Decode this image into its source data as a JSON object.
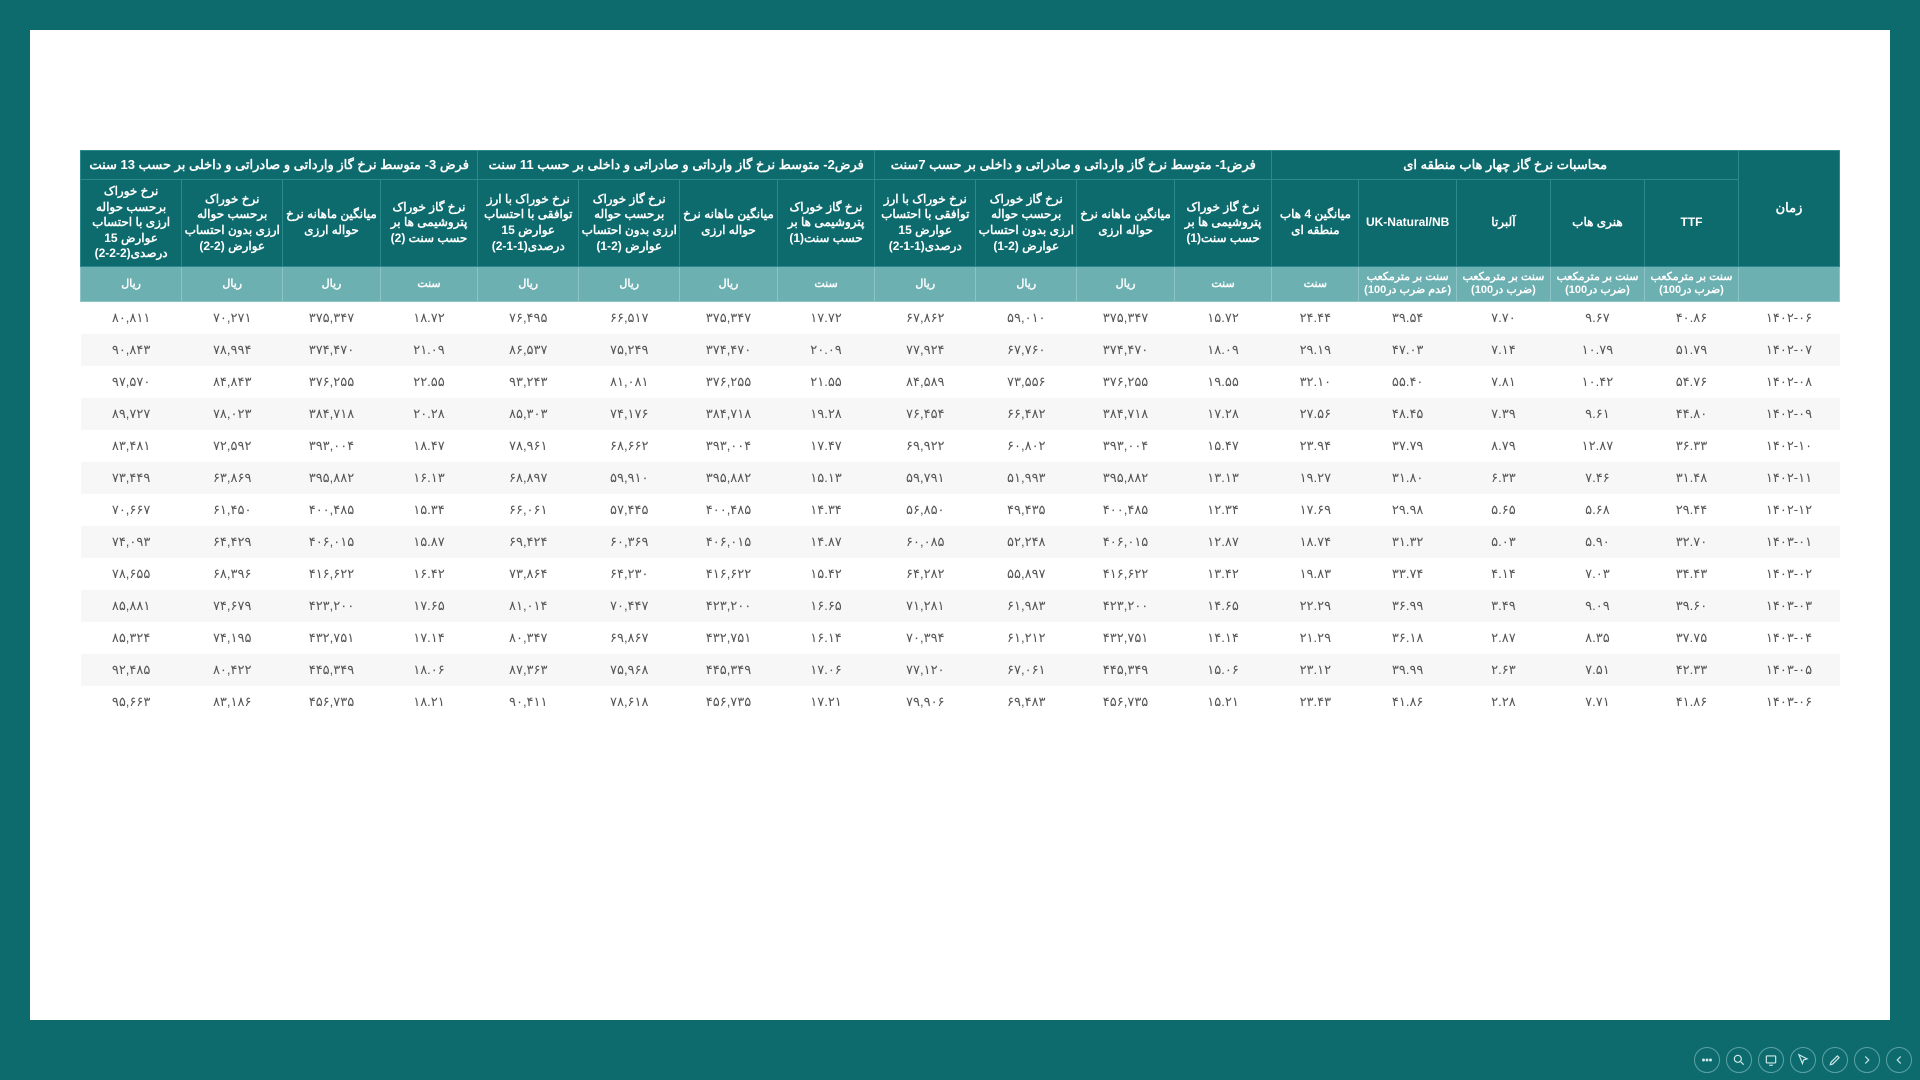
{
  "colors": {
    "page_bg": "#0d6b6e",
    "sheet_bg": "#ffffff",
    "header_bg": "#0d6b6e",
    "header_border": "#2a8a8d",
    "units_bg": "#6db0b2",
    "text": "#555555"
  },
  "groups": [
    {
      "label": "زمان",
      "span": 1
    },
    {
      "label": "محاسبات نرخ گاز چهار هاب منطقه ای",
      "span": 5
    },
    {
      "label": "فرض1- متوسط نرخ گاز وارداتی و صادراتی و داخلی بر حسب 7سنت",
      "span": 4
    },
    {
      "label": "فرض2- متوسط نرخ گاز وارداتی و صادراتی و داخلی بر حسب 11 سنت",
      "span": 4
    },
    {
      "label": "فرض 3- متوسط نرخ گاز وارداتی و صادراتی و داخلی بر حسب 13 سنت",
      "span": 4
    }
  ],
  "subheaders": [
    "زمان",
    "TTF",
    "هنری هاب",
    "آلبرتا",
    "UK-Natural/NB",
    "میانگین 4 هاب منطقه ای",
    "نرخ گاز خوراک پتروشیمی ها بر حسب سنت(1)",
    "میانگین ماهانه نرخ حواله ارزی",
    "نرخ گاز خوراک برحسب حواله ارزی بدون احتساب عوارض (2-1)",
    "نرخ خوراک با ارز توافقی با احتساب عوارض 15 درصدی(1-1-2)",
    "نرخ گاز خوراک پتروشیمی ها بر حسب سنت(1)",
    "میانگین ماهانه نرخ حواله ارزی",
    "نرخ گاز خوراک برحسب حواله ارزی بدون احتساب عوارض (2-1)",
    "نرخ خوراک با ارز توافقی با احتساب عوارض 15 درصدی(1-1-2)",
    "نرخ گاز خوراک پتروشیمی ها بر حسب سنت (2)",
    "میانگین ماهانه نرخ حواله ارزی",
    "نرخ خوراک برحسب حواله ارزی بدون احتساب عوارض (2-2)",
    "نرخ خوراک برحسب حواله ارزی با احتساب عوارض 15 درصدی(2-2-2)"
  ],
  "units": [
    "",
    "سنت بر مترمکعب (ضرب در100)",
    "سنت بر مترمکعب (ضرب در100)",
    "سنت بر مترمکعب (ضرب در100)",
    "سنت بر مترمکعب (عدم ضرب در100)",
    "سنت",
    "سنت",
    "ریال",
    "ریال",
    "ریال",
    "سنت",
    "ریال",
    "ریال",
    "ریال",
    "سنت",
    "ریال",
    "ریال",
    "ریال"
  ],
  "rows": [
    [
      "1402-06",
      "40.86",
      "9.67",
      "7.70",
      "39.54",
      "24.44",
      "15.72",
      "375,347",
      "59,010",
      "67,862",
      "17.72",
      "375,347",
      "66,517",
      "76,495",
      "18.72",
      "375,347",
      "70,271",
      "80,811"
    ],
    [
      "1402-07",
      "51.79",
      "10.79",
      "7.14",
      "47.03",
      "29.19",
      "18.09",
      "374,470",
      "67,760",
      "77,924",
      "20.09",
      "374,470",
      "75,249",
      "86,537",
      "21.09",
      "374,470",
      "78,994",
      "90,843"
    ],
    [
      "1402-08",
      "54.76",
      "10.42",
      "7.81",
      "55.40",
      "32.10",
      "19.55",
      "376,255",
      "73,556",
      "84,589",
      "21.55",
      "376,255",
      "81,081",
      "93,243",
      "22.55",
      "376,255",
      "84,843",
      "97,570"
    ],
    [
      "1402-09",
      "44.80",
      "9.61",
      "7.39",
      "48.45",
      "27.56",
      "17.28",
      "384,718",
      "66,482",
      "76,454",
      "19.28",
      "384,718",
      "74,176",
      "85,303",
      "20.28",
      "384,718",
      "78,023",
      "89,727"
    ],
    [
      "1402-10",
      "36.33",
      "12.87",
      "8.79",
      "37.79",
      "23.94",
      "15.47",
      "393,004",
      "60,802",
      "69,922",
      "17.47",
      "393,004",
      "68,662",
      "78,961",
      "18.47",
      "393,004",
      "72,592",
      "83,481"
    ],
    [
      "1402-11",
      "31.48",
      "7.46",
      "6.33",
      "31.80",
      "19.27",
      "13.13",
      "395,882",
      "51,993",
      "59,791",
      "15.13",
      "395,882",
      "59,910",
      "68,897",
      "16.13",
      "395,882",
      "63,869",
      "73,449"
    ],
    [
      "1402-12",
      "29.44",
      "5.68",
      "5.65",
      "29.98",
      "17.69",
      "12.34",
      "400,485",
      "49,435",
      "56,850",
      "14.34",
      "400,485",
      "57,445",
      "66,061",
      "15.34",
      "400,485",
      "61,450",
      "70,667"
    ],
    [
      "1403-01",
      "32.70",
      "5.90",
      "5.03",
      "31.32",
      "18.74",
      "12.87",
      "406,015",
      "52,248",
      "60,085",
      "14.87",
      "406,015",
      "60,369",
      "69,424",
      "15.87",
      "406,015",
      "64,429",
      "74,093"
    ],
    [
      "1403-02",
      "34.43",
      "7.03",
      "4.14",
      "33.74",
      "19.83",
      "13.42",
      "416,622",
      "55,897",
      "64,282",
      "15.42",
      "416,622",
      "64,230",
      "73,864",
      "16.42",
      "416,622",
      "68,396",
      "78,655"
    ],
    [
      "1403-03",
      "39.60",
      "9.09",
      "3.49",
      "36.99",
      "22.29",
      "14.65",
      "423,200",
      "61,983",
      "71,281",
      "16.65",
      "423,200",
      "70,447",
      "81,014",
      "17.65",
      "423,200",
      "74,679",
      "85,881"
    ],
    [
      "1403-04",
      "37.75",
      "8.35",
      "2.87",
      "36.18",
      "21.29",
      "14.14",
      "432,751",
      "61,212",
      "70,394",
      "16.14",
      "432,751",
      "69,867",
      "80,347",
      "17.14",
      "432,751",
      "74,195",
      "85,324"
    ],
    [
      "1403-05",
      "42.33",
      "7.51",
      "2.63",
      "39.99",
      "23.12",
      "15.06",
      "445,349",
      "67,061",
      "77,120",
      "17.06",
      "445,349",
      "75,968",
      "87,363",
      "18.06",
      "445,349",
      "80,422",
      "92,485"
    ],
    [
      "1403-06",
      "41.86",
      "7.71",
      "2.28",
      "41.86",
      "23.43",
      "15.21",
      "456,735",
      "69,483",
      "79,906",
      "17.21",
      "456,735",
      "78,618",
      "90,411",
      "18.21",
      "456,735",
      "83,186",
      "95,663"
    ]
  ],
  "toolbar": {
    "items": [
      "prev",
      "next",
      "pen",
      "pointer",
      "view",
      "zoom",
      "more"
    ]
  }
}
